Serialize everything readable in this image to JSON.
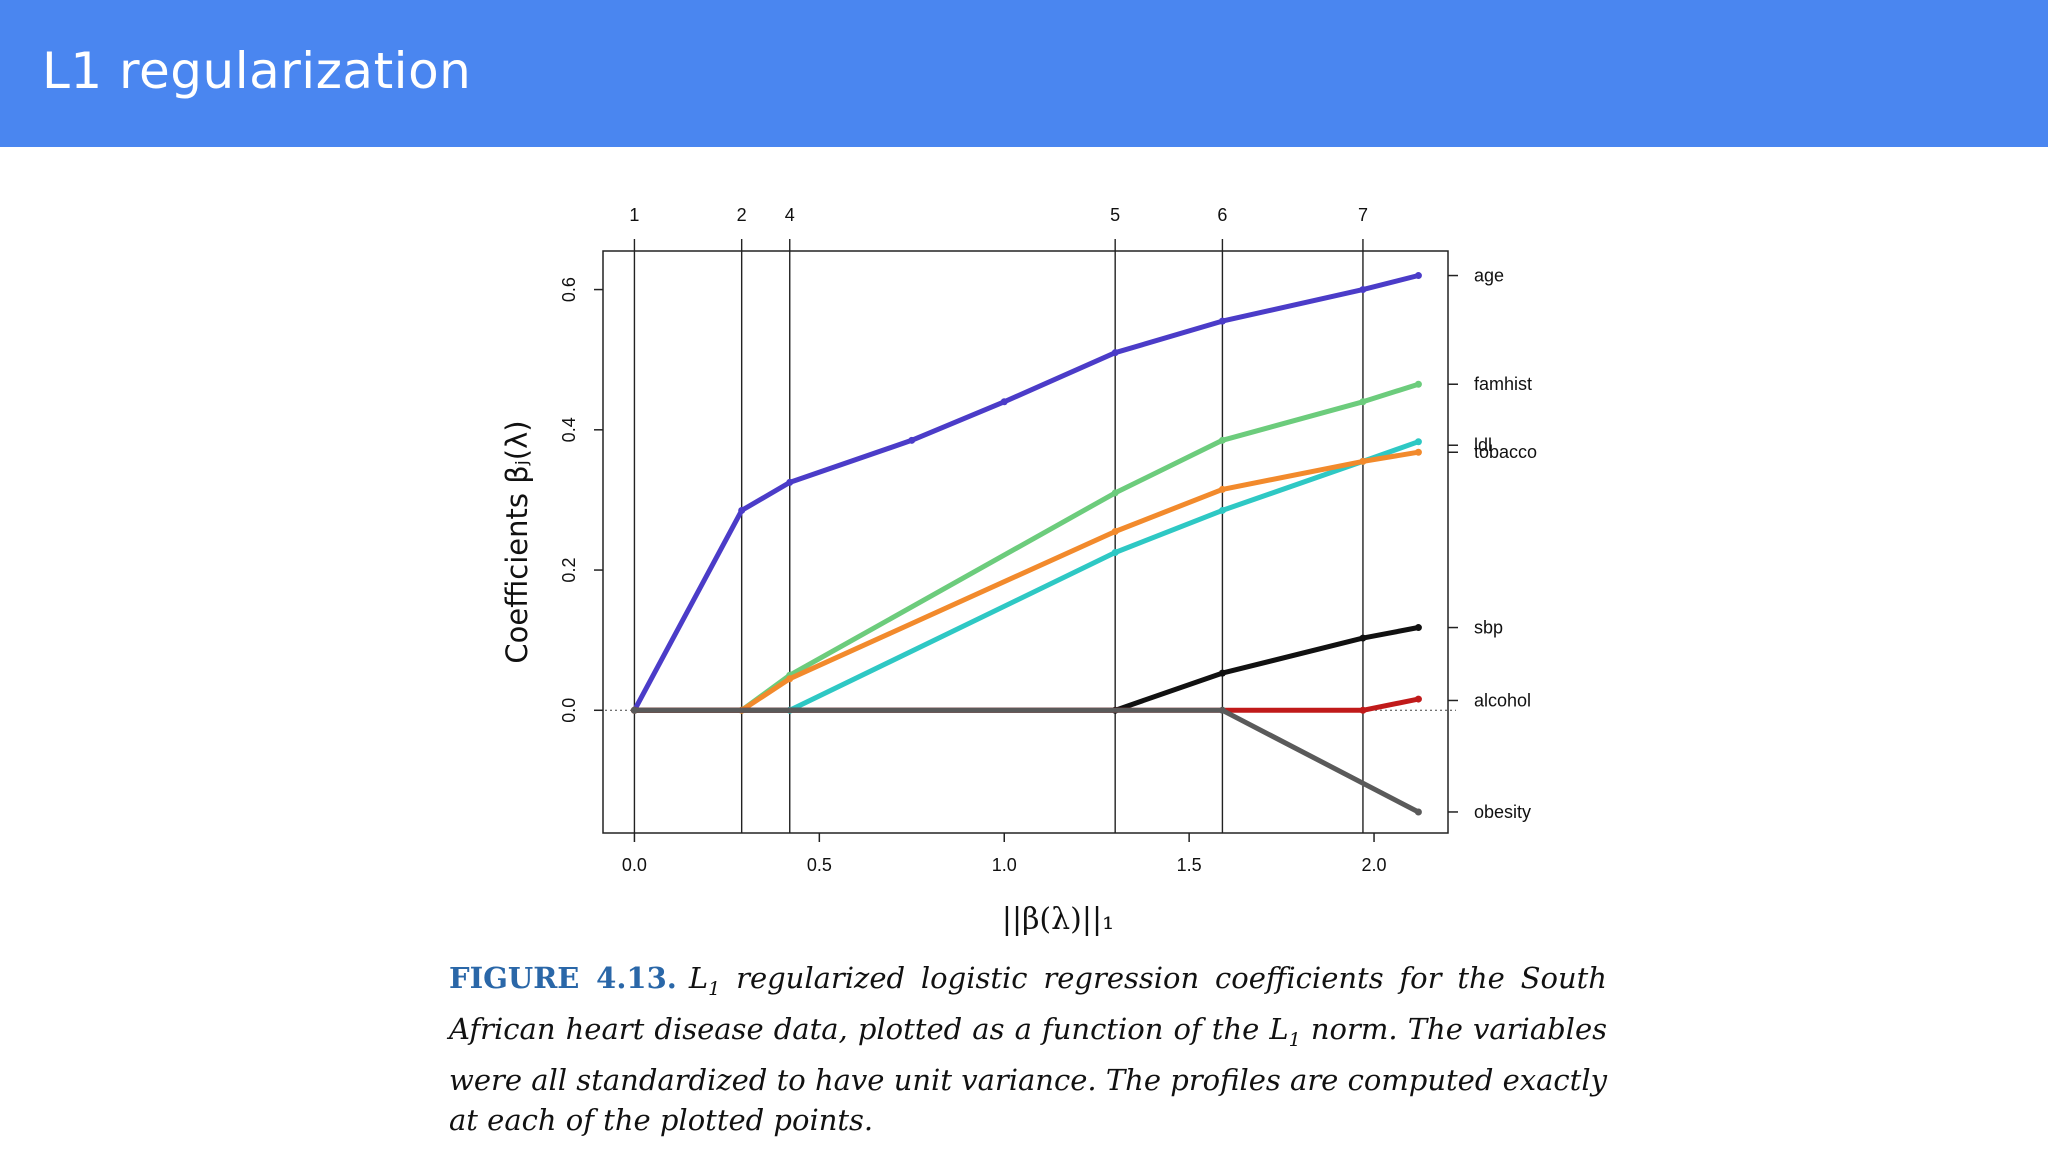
{
  "slide": {
    "title": "L1 regularization"
  },
  "caption": {
    "figure_label": "FIGURE 4.13.",
    "text_html": "L<sub>1</sub> regularized logistic regression coefficients for the South African heart disease data, plotted as a function of the L<sub>1</sub> norm. The variables were all standardized to have unit variance. The profiles are computed exactly at each of the plotted points."
  },
  "chart_data": {
    "type": "line",
    "xlabel": "||β(λ)||₁",
    "ylabel": "Coefficients βⱼ(λ)",
    "xlim": [
      -0.085,
      2.2
    ],
    "ylim": [
      -0.175,
      0.655
    ],
    "x_ticks": [
      0.0,
      0.5,
      1.0,
      1.5,
      2.0
    ],
    "x_tick_labels": [
      "0.0",
      "0.5",
      "1.0",
      "1.5",
      "2.0"
    ],
    "y_ticks": [
      0.0,
      0.2,
      0.4,
      0.6
    ],
    "y_tick_labels": [
      "0.0",
      "0.2",
      "0.4",
      "0.6"
    ],
    "grid": false,
    "top_axis": {
      "positions": [
        0.0,
        0.29,
        0.42,
        1.3,
        1.59,
        1.97
      ],
      "labels": [
        "1",
        "2",
        "4",
        "5",
        "6",
        "7"
      ]
    },
    "series": [
      {
        "name": "age",
        "color": "#4b3cc8",
        "label_y": 0.62,
        "x": [
          0.0,
          0.29,
          0.42,
          0.75,
          1.0,
          1.3,
          1.59,
          1.97,
          2.12
        ],
        "y": [
          0.0,
          0.285,
          0.325,
          0.385,
          0.44,
          0.51,
          0.555,
          0.6,
          0.62
        ]
      },
      {
        "name": "famhist",
        "color": "#6ccc7c",
        "label_y": 0.465,
        "x": [
          0.0,
          0.29,
          0.42,
          1.3,
          1.59,
          1.97,
          2.12
        ],
        "y": [
          0.0,
          0.0,
          0.05,
          0.31,
          0.385,
          0.44,
          0.465
        ]
      },
      {
        "name": "ldl",
        "color": "#2ec8c4",
        "label_y": 0.378,
        "x": [
          0.0,
          0.42,
          1.3,
          1.59,
          1.97,
          2.12
        ],
        "y": [
          0.0,
          0.0,
          0.225,
          0.285,
          0.355,
          0.383
        ]
      },
      {
        "name": "tobacco",
        "color": "#f28a2c",
        "label_y": 0.368,
        "x": [
          0.0,
          0.29,
          0.42,
          1.3,
          1.59,
          1.97,
          2.12
        ],
        "y": [
          0.0,
          0.0,
          0.045,
          0.255,
          0.315,
          0.355,
          0.368
        ]
      },
      {
        "name": "sbp",
        "color": "#111111",
        "label_y": 0.118,
        "x": [
          0.0,
          1.3,
          1.59,
          1.97,
          2.12
        ],
        "y": [
          0.0,
          0.0,
          0.053,
          0.103,
          0.118
        ]
      },
      {
        "name": "alcohol",
        "color": "#c01a1a",
        "label_y": 0.014,
        "x": [
          0.0,
          1.97,
          2.12
        ],
        "y": [
          0.0,
          0.0,
          0.016
        ]
      },
      {
        "name": "obesity",
        "color": "#5a5a5a",
        "label_y": -0.145,
        "x": [
          0.0,
          1.59,
          2.12
        ],
        "y": [
          0.0,
          0.0,
          -0.145
        ]
      }
    ]
  }
}
